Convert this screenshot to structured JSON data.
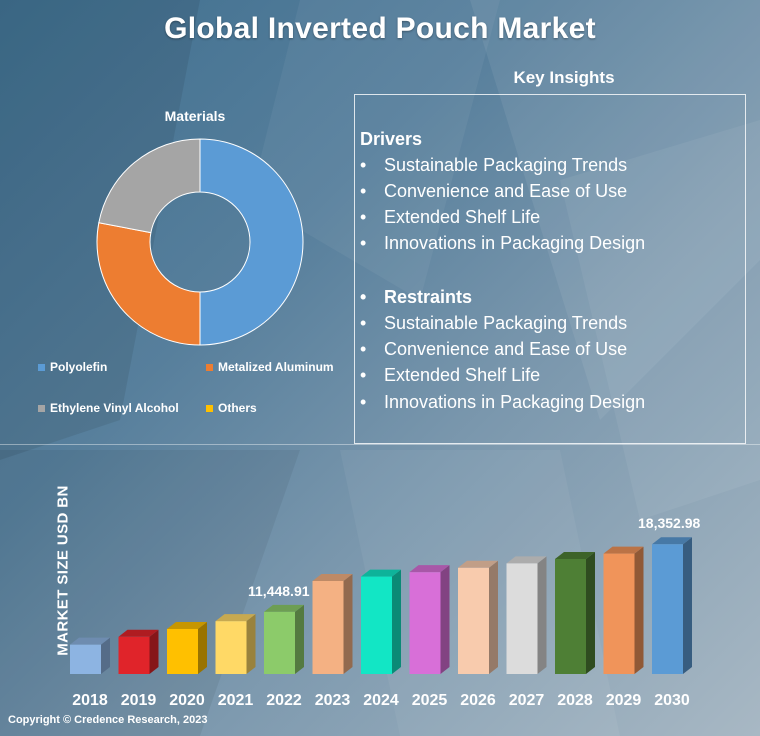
{
  "title": "Global Inverted Pouch Market",
  "copyright": "Copyright © Credence Research, 2023",
  "insights": {
    "heading": "Key Insights",
    "drivers_title": "Drivers",
    "drivers": [
      "Sustainable Packaging Trends",
      "Convenience and Ease of Use",
      "Extended Shelf Life",
      "Innovations in Packaging Design"
    ],
    "restraints_title": "Restraints",
    "restraints": [
      "Sustainable Packaging Trends",
      "Convenience and Ease of Use",
      "Extended Shelf Life",
      "Innovations in Packaging Design"
    ]
  },
  "chart_data": [
    {
      "type": "pie",
      "title": "Materials",
      "categories": [
        "Polyolefin",
        "Metalized Aluminum",
        "Ethylene Vinyl Alcohol",
        "Others"
      ],
      "values": [
        50,
        28,
        22,
        0
      ],
      "colors": [
        "#5b9bd5",
        "#ed7d31",
        "#a5a5a5",
        "#ffc000"
      ],
      "legend": "bottom"
    },
    {
      "type": "bar",
      "ylabel": "MARKET SIZE USD BN",
      "categories": [
        "2018",
        "2019",
        "2020",
        "2021",
        "2022",
        "2023",
        "2024",
        "2025",
        "2026",
        "2027",
        "2028",
        "2029",
        "2030"
      ],
      "values": [
        8100,
        8900,
        9700,
        10500,
        11448.91,
        14600,
        15050,
        15500,
        15950,
        16400,
        16850,
        17400,
        18352.98
      ],
      "data_labels": {
        "4": "11,448.91",
        "12": "18,352.98"
      },
      "colors": [
        "#8db4e2",
        "#e0242a",
        "#ffc000",
        "#ffd966",
        "#8ccb6a",
        "#f4b183",
        "#12e6c5",
        "#d86fd8",
        "#f8cbad",
        "#dcdcdc",
        "#4e7f35",
        "#f0945a",
        "#5b9bd5"
      ]
    }
  ]
}
